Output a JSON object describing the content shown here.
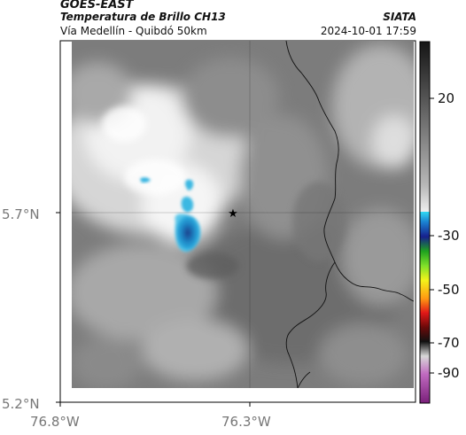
{
  "header": {
    "satellite": "GOES-EAST",
    "product": "Temperatura de Brillo CH13",
    "organization": "SIATA",
    "region": "Vía Medellín - Quibdó 50km",
    "datetime": "2024-10-01 17:59"
  },
  "map": {
    "lat_ticks": [
      "5.7°N",
      "5.2°N"
    ],
    "lon_ticks": [
      "76.8°W",
      "76.3°W"
    ],
    "marker": "star-icon"
  },
  "colorbar": {
    "labels": [
      "20",
      "-30",
      "-50",
      "-70",
      "-90"
    ]
  },
  "colors": {
    "cold_cloud": "#1f8fc8",
    "background_gray": "#7c7c7c",
    "border": "#000000"
  }
}
